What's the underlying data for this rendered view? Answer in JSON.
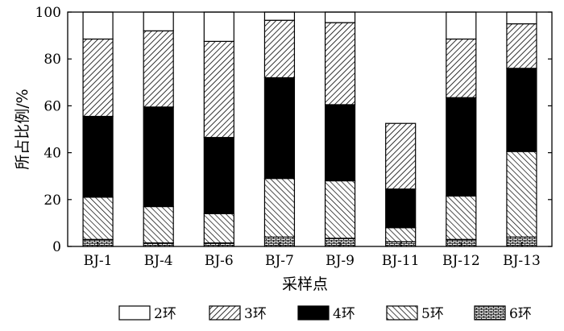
{
  "chart_data": {
    "type": "bar",
    "stacked": true,
    "percent": true,
    "xlabel": "采样点",
    "ylabel": "所占比例/%",
    "ylim": [
      0,
      100
    ],
    "yticks": [
      0,
      20,
      40,
      60,
      80,
      100
    ],
    "categories": [
      "BJ-1",
      "BJ-4",
      "BJ-6",
      "BJ-7",
      "BJ-9",
      "BJ-11",
      "BJ-12",
      "BJ-13"
    ],
    "legend_position": "bottom",
    "series": [
      {
        "name": "6环",
        "pattern": "brick",
        "values": [
          3.0,
          1.5,
          1.5,
          4.0,
          3.5,
          2.0,
          3.0,
          4.0
        ]
      },
      {
        "name": "5环",
        "pattern": "back-hatch",
        "values": [
          18.0,
          15.5,
          12.5,
          25.0,
          24.5,
          6.0,
          18.5,
          36.5
        ]
      },
      {
        "name": "4环",
        "pattern": "solid",
        "values": [
          34.5,
          42.5,
          32.5,
          43.0,
          32.5,
          16.5,
          42.0,
          35.5
        ]
      },
      {
        "name": "3环",
        "pattern": "fwd-hatch",
        "values": [
          33.0,
          32.5,
          41.0,
          24.5,
          35.0,
          28.0,
          25.0,
          19.0
        ]
      },
      {
        "name": "2环",
        "pattern": "white",
        "values": [
          11.5,
          8.0,
          12.5,
          3.5,
          4.5,
          0.0,
          11.5,
          5.0
        ]
      }
    ],
    "legend_order": [
      4,
      3,
      2,
      1,
      0
    ]
  }
}
